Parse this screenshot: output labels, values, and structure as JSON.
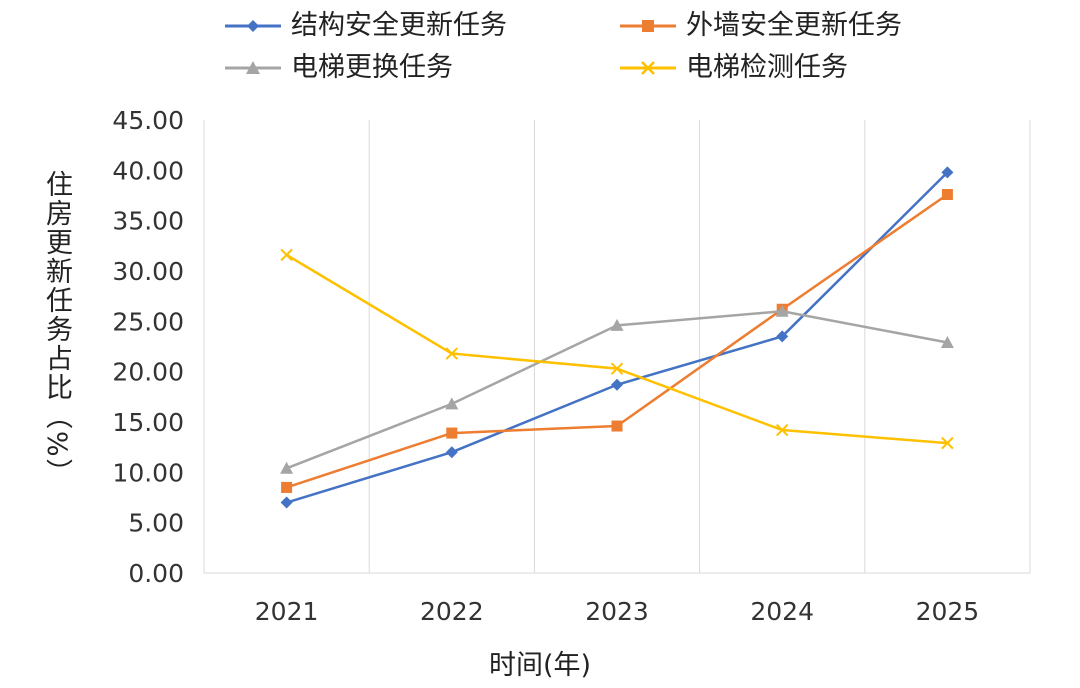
{
  "chart_data": {
    "type": "line",
    "categories": [
      "2021",
      "2022",
      "2023",
      "2024",
      "2025"
    ],
    "series": [
      {
        "name": "结构安全更新任务",
        "color": "#4472C4",
        "marker": "diamond",
        "values": [
          7.0,
          12.0,
          18.7,
          23.5,
          39.8
        ]
      },
      {
        "name": "外墙安全更新任务",
        "color": "#ED7D31",
        "marker": "square",
        "values": [
          8.5,
          13.9,
          14.6,
          26.2,
          37.6
        ]
      },
      {
        "name": "电梯更换任务",
        "color": "#A5A5A5",
        "marker": "triangle",
        "values": [
          10.4,
          16.8,
          24.6,
          26.0,
          22.9
        ]
      },
      {
        "name": "电梯检测任务",
        "color": "#FFC000",
        "marker": "cross",
        "values": [
          31.6,
          21.8,
          20.3,
          14.2,
          12.9
        ]
      }
    ],
    "ylabel": "住房更新任务占比（%）",
    "xlabel": "时间(年)",
    "ylim": [
      0,
      45
    ],
    "yticks": [
      "0.00",
      "5.00",
      "10.00",
      "15.00",
      "20.00",
      "25.00",
      "30.00",
      "35.00",
      "40.00",
      "45.00"
    ],
    "grid": "vertical",
    "legend": "top"
  }
}
